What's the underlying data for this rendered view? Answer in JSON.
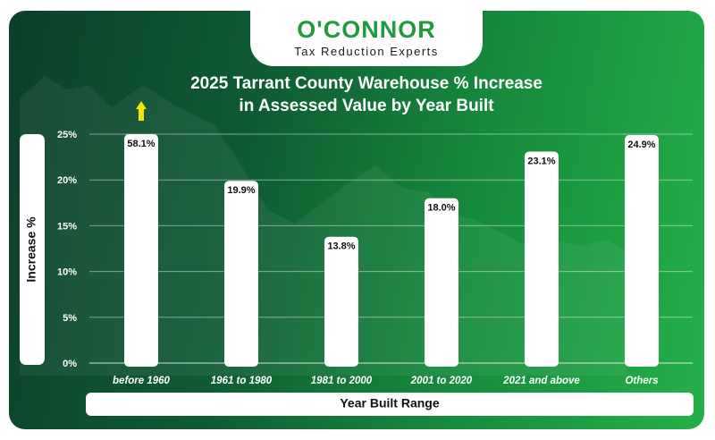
{
  "brand": {
    "name": "O'CONNOR",
    "tagline": "Tax Reduction Experts"
  },
  "colors": {
    "bar": "#ffffff",
    "grid": "#ffffff",
    "arrow": "#f5e600",
    "brand_green": "#1f9a3e"
  },
  "chart_data": {
    "type": "bar",
    "title": "2025 Tarrant County Warehouse % Increase in Assessed Value by Year Built",
    "title_lines": [
      "2025 Tarrant County Warehouse % Increase",
      "in Assessed Value by Year Built"
    ],
    "xlabel": "Year Built Range",
    "ylabel": "Increase %",
    "categories": [
      "before 1960",
      "1961 to 1980",
      "1981 to 2000",
      "2001 to 2020",
      "2021 and above",
      "Others"
    ],
    "values": [
      58.1,
      19.9,
      13.8,
      18.0,
      23.1,
      24.9
    ],
    "value_labels": [
      "58.1%",
      "19.9%",
      "13.8%",
      "18.0%",
      "23.1%",
      "24.9%"
    ],
    "ylim": [
      0,
      25
    ],
    "yticks": [
      0,
      5,
      10,
      15,
      20,
      25
    ],
    "ytick_labels": [
      "0%",
      "5%",
      "10%",
      "15%",
      "20%",
      "25%"
    ],
    "grid": true,
    "clipped_bars": [
      0
    ]
  }
}
